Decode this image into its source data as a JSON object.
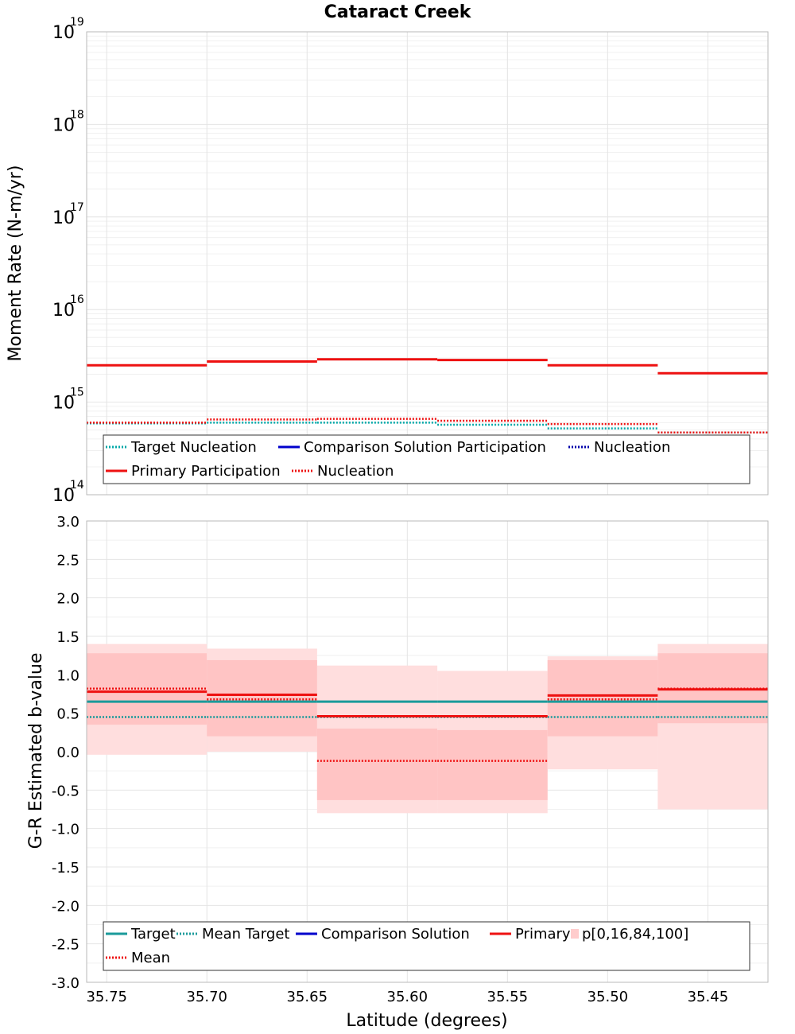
{
  "chart_data": [
    {
      "type": "line",
      "title": "Cataract Creek",
      "xlabel": "",
      "ylabel": "Moment Rate (N-m/yr)",
      "yscale": "log",
      "xlim": [
        35.76,
        35.42
      ],
      "ylim": [
        100000000000000.0,
        1e+19
      ],
      "y_ticks": [
        {
          "base": "10",
          "exp": "14",
          "value": 100000000000000.0
        },
        {
          "base": "10",
          "exp": "15",
          "value": 1000000000000000.0
        },
        {
          "base": "10",
          "exp": "16",
          "value": 1e+16
        },
        {
          "base": "10",
          "exp": "17",
          "value": 1e+17
        },
        {
          "base": "10",
          "exp": "18",
          "value": 1e+18
        },
        {
          "base": "10",
          "exp": "19",
          "value": 1e+19
        }
      ],
      "grid": true,
      "legend_position": "bottom",
      "bin_edges": [
        35.76,
        35.7,
        35.645,
        35.585,
        35.53,
        35.475,
        35.42
      ],
      "series": [
        {
          "name": "Target Nucleation",
          "style": "dotted",
          "color": "#00a8a8",
          "values": [
            590000000000000.0,
            600000000000000.0,
            600000000000000.0,
            570000000000000.0,
            520000000000000.0,
            470000000000000.0
          ]
        },
        {
          "name": "Comparison Solution Participation",
          "style": "solid",
          "color": "#0000cc",
          "values": []
        },
        {
          "name": "Nucleation",
          "style": "dotted",
          "color": "#0000aa",
          "values": []
        },
        {
          "name": "Primary Participation",
          "style": "solid",
          "color": "#ee1111",
          "values": [
            2500000000000000.0,
            2750000000000000.0,
            2900000000000000.0,
            2850000000000000.0,
            2500000000000000.0,
            2050000000000000.0
          ]
        },
        {
          "name": "Nucleation",
          "style": "dotted",
          "color": "#ee1111",
          "values": [
            600000000000000.0,
            650000000000000.0,
            660000000000000.0,
            630000000000000.0,
            580000000000000.0,
            470000000000000.0
          ]
        }
      ]
    },
    {
      "type": "line",
      "title": "",
      "xlabel": "Latitude (degrees)",
      "ylabel": "G-R Estimated b-value",
      "xlim": [
        35.76,
        35.42
      ],
      "ylim": [
        -3.0,
        3.0
      ],
      "x_ticks": [
        "35.75",
        "35.70",
        "35.65",
        "35.60",
        "35.55",
        "35.50",
        "35.45"
      ],
      "x_tick_values": [
        35.75,
        35.7,
        35.65,
        35.6,
        35.55,
        35.5,
        35.45
      ],
      "y_ticks": [
        "-3.0",
        "-2.5",
        "-2.0",
        "-1.5",
        "-1.0",
        "-0.5",
        "0.0",
        "0.5",
        "1.0",
        "1.5",
        "2.0",
        "2.5",
        "3.0"
      ],
      "y_tick_values": [
        -3.0,
        -2.5,
        -2.0,
        -1.5,
        -1.0,
        -0.5,
        0.0,
        0.5,
        1.0,
        1.5,
        2.0,
        2.5,
        3.0
      ],
      "grid": true,
      "legend_position": "bottom",
      "bin_edges": [
        35.76,
        35.7,
        35.645,
        35.585,
        35.53,
        35.475,
        35.42
      ],
      "bands": {
        "p0": [
          -0.04,
          0.0,
          -0.8,
          -0.8,
          -0.23,
          -0.75
        ],
        "p16": [
          0.35,
          0.2,
          -0.63,
          -0.63,
          0.2,
          0.37
        ],
        "p84": [
          1.28,
          1.19,
          0.3,
          0.28,
          1.19,
          1.28
        ],
        "p100": [
          1.4,
          1.34,
          1.12,
          1.05,
          1.24,
          1.4
        ]
      },
      "series": [
        {
          "name": "Target",
          "style": "solid",
          "color": "#1a9a9a",
          "values": [
            0.65,
            0.65,
            0.65,
            0.65,
            0.65,
            0.65
          ]
        },
        {
          "name": "Mean Target",
          "style": "dotted",
          "color": "#1a9a9a",
          "values": [
            0.45,
            0.45,
            0.45,
            0.45,
            0.45,
            0.45
          ]
        },
        {
          "name": "Comparison Solution",
          "style": "solid",
          "color": "#0000cc",
          "values": []
        },
        {
          "name": "Primary",
          "style": "solid",
          "color": "#ee1111",
          "values": [
            0.78,
            0.74,
            0.46,
            0.46,
            0.73,
            0.81
          ]
        },
        {
          "name": "p[0,16,84,100]",
          "style": "band",
          "color": "#ffcccc",
          "values": []
        },
        {
          "name": "Mean",
          "style": "dotted",
          "color": "#ee1111",
          "values": [
            0.82,
            0.68,
            -0.12,
            -0.12,
            0.68,
            0.82
          ]
        }
      ]
    }
  ]
}
